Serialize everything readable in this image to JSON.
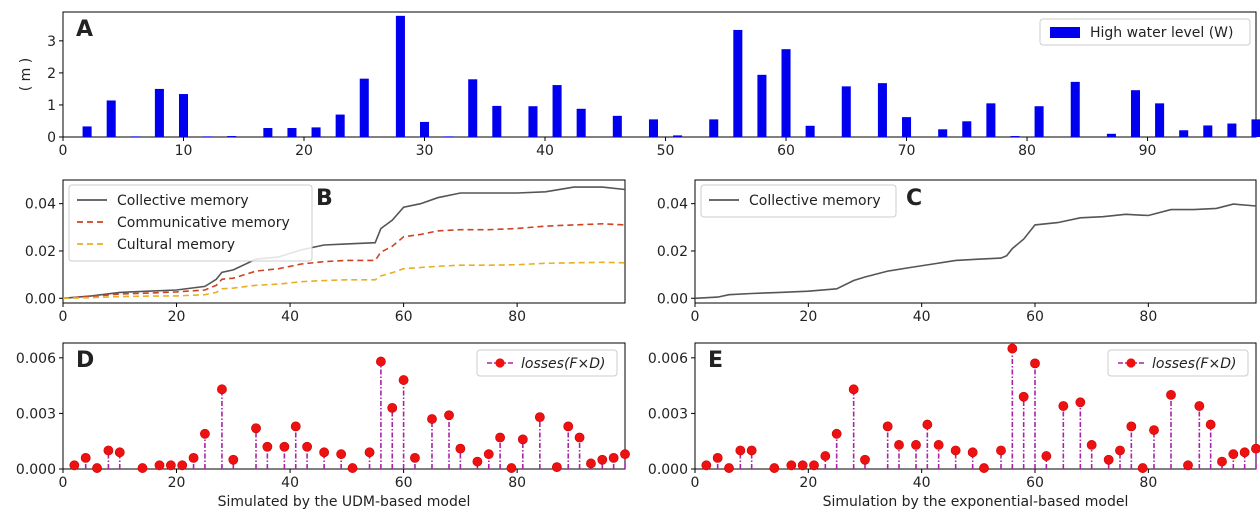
{
  "chart_data": [
    {
      "panel": "A",
      "type": "bar",
      "ylabel": "( m )",
      "xlim": [
        0,
        99
      ],
      "ylim": [
        0,
        3.9
      ],
      "xticks": [
        0,
        10,
        20,
        30,
        40,
        50,
        60,
        70,
        80,
        90
      ],
      "yticks": [
        0,
        1,
        2,
        3
      ],
      "legend": "top-right",
      "color": "#0000ee",
      "series": [
        {
          "name": "High water level (W)",
          "x": [
            2,
            4,
            6,
            8,
            10,
            12,
            14,
            17,
            19,
            21,
            23,
            25,
            28,
            30,
            32,
            34,
            36,
            39,
            41,
            43,
            46,
            49,
            51,
            54,
            56,
            58,
            60,
            62,
            65,
            68,
            70,
            73,
            75,
            77,
            79,
            81,
            84,
            87,
            89,
            91,
            93,
            95,
            97,
            99
          ],
          "values": [
            0.33,
            1.14,
            0.02,
            1.5,
            1.34,
            0.02,
            0.03,
            0.28,
            0.28,
            0.3,
            0.7,
            1.82,
            3.78,
            0.47,
            0.02,
            1.8,
            0.97,
            0.96,
            1.62,
            0.88,
            0.66,
            0.55,
            0.05,
            0.55,
            3.34,
            1.94,
            2.74,
            0.35,
            1.58,
            1.68,
            0.62,
            0.24,
            0.49,
            1.05,
            0.03,
            0.96,
            1.72,
            0.1,
            1.46,
            1.05,
            0.21,
            0.36,
            0.42,
            0.55
          ]
        }
      ]
    },
    {
      "panel": "B",
      "type": "line",
      "xlim": [
        0,
        99
      ],
      "ylim": [
        -0.002,
        0.05
      ],
      "xticks": [
        0,
        20,
        40,
        60,
        80
      ],
      "yticks": [
        0.0,
        0.02,
        0.04
      ],
      "ytick_labels": [
        "0.00",
        "0.02",
        "0.04"
      ],
      "legend": "top-left",
      "x": [
        0,
        5,
        10,
        15,
        20,
        25,
        27,
        28,
        30,
        34,
        38,
        42,
        46,
        50,
        55,
        56,
        58,
        60,
        63,
        66,
        70,
        75,
        80,
        85,
        90,
        95,
        99
      ],
      "series": [
        {
          "name": "Collective memory",
          "color": "#555555",
          "dash": "solid",
          "values": [
            0.0,
            0.001,
            0.0025,
            0.003,
            0.0035,
            0.005,
            0.008,
            0.011,
            0.012,
            0.0165,
            0.0175,
            0.0205,
            0.0225,
            0.023,
            0.0235,
            0.0295,
            0.033,
            0.0385,
            0.04,
            0.0425,
            0.0445,
            0.0445,
            0.0445,
            0.045,
            0.047,
            0.047,
            0.046
          ]
        },
        {
          "name": "Communicative memory",
          "color": "#cc4422",
          "dash": "dashed",
          "values": [
            0.0,
            0.0008,
            0.0018,
            0.0022,
            0.0027,
            0.0035,
            0.0055,
            0.008,
            0.0085,
            0.0115,
            0.0125,
            0.0145,
            0.0155,
            0.016,
            0.016,
            0.0195,
            0.022,
            0.026,
            0.027,
            0.0285,
            0.029,
            0.029,
            0.0295,
            0.0305,
            0.031,
            0.0315,
            0.031
          ]
        },
        {
          "name": "Cultural memory",
          "color": "#e8b020",
          "dash": "dashed",
          "values": [
            0.0,
            0.0003,
            0.0007,
            0.0009,
            0.001,
            0.0015,
            0.0025,
            0.004,
            0.0043,
            0.0055,
            0.006,
            0.007,
            0.0075,
            0.0078,
            0.0078,
            0.0095,
            0.0108,
            0.0125,
            0.013,
            0.0135,
            0.014,
            0.014,
            0.0142,
            0.0148,
            0.015,
            0.0152,
            0.015
          ]
        }
      ]
    },
    {
      "panel": "C",
      "type": "line",
      "xlim": [
        0,
        99
      ],
      "ylim": [
        -0.002,
        0.05
      ],
      "xticks": [
        0,
        20,
        40,
        60,
        80
      ],
      "yticks": [
        0.0,
        0.02,
        0.04
      ],
      "ytick_labels": [
        "0.00",
        "0.02",
        "0.04"
      ],
      "legend": "top-left",
      "x": [
        0,
        4,
        6,
        10,
        15,
        20,
        25,
        28,
        30,
        34,
        38,
        42,
        46,
        50,
        54,
        55,
        56,
        58,
        60,
        64,
        68,
        72,
        76,
        80,
        84,
        88,
        92,
        95,
        99
      ],
      "series": [
        {
          "name": "Collective memory",
          "color": "#555555",
          "dash": "solid",
          "values": [
            0.0,
            0.0005,
            0.0015,
            0.002,
            0.0025,
            0.003,
            0.004,
            0.0075,
            0.009,
            0.0115,
            0.013,
            0.0145,
            0.016,
            0.0165,
            0.017,
            0.018,
            0.021,
            0.025,
            0.031,
            0.032,
            0.034,
            0.0345,
            0.0355,
            0.035,
            0.0375,
            0.0375,
            0.038,
            0.0398,
            0.039
          ]
        }
      ]
    },
    {
      "panel": "D",
      "type": "scatter",
      "xlabel": "Simulated by the UDM-based model",
      "xlim": [
        0,
        99
      ],
      "ylim": [
        0,
        0.0068
      ],
      "xticks": [
        0,
        20,
        40,
        60,
        80
      ],
      "yticks": [
        0.0,
        0.003,
        0.006
      ],
      "ytick_labels": [
        "0.000",
        "0.003",
        "0.006"
      ],
      "legend": "top-right",
      "legend_label": "losses(F×D)",
      "x": [
        2,
        4,
        6,
        8,
        10,
        14,
        17,
        19,
        21,
        23,
        25,
        28,
        30,
        34,
        36,
        39,
        41,
        43,
        46,
        49,
        51,
        54,
        56,
        58,
        60,
        62,
        65,
        68,
        70,
        73,
        75,
        77,
        79,
        81,
        84,
        87,
        89,
        91,
        93,
        95,
        97,
        99
      ],
      "values": [
        0.0002,
        0.0006,
        5e-05,
        0.001,
        0.0009,
        5e-05,
        0.0002,
        0.0002,
        0.0002,
        0.0006,
        0.0019,
        0.0043,
        0.0005,
        0.0022,
        0.0012,
        0.0012,
        0.0023,
        0.0012,
        0.0009,
        0.0008,
        5e-05,
        0.0009,
        0.0058,
        0.0033,
        0.0048,
        0.0006,
        0.0027,
        0.0029,
        0.0011,
        0.0004,
        0.0008,
        0.0017,
        5e-05,
        0.0016,
        0.0028,
        0.0001,
        0.0023,
        0.0017,
        0.0003,
        0.0005,
        0.0006,
        0.0008
      ]
    },
    {
      "panel": "E",
      "type": "scatter",
      "xlabel": "Simulation by the exponential-based model",
      "xlim": [
        0,
        99
      ],
      "ylim": [
        0,
        0.0068
      ],
      "xticks": [
        0,
        20,
        40,
        60,
        80
      ],
      "yticks": [
        0.0,
        0.003,
        0.006
      ],
      "ytick_labels": [
        "0.000",
        "0.003",
        "0.006"
      ],
      "legend": "top-right",
      "legend_label": "losses(F×D)",
      "x": [
        2,
        4,
        6,
        8,
        10,
        14,
        17,
        19,
        21,
        23,
        25,
        28,
        30,
        34,
        36,
        39,
        41,
        43,
        46,
        49,
        51,
        54,
        56,
        58,
        60,
        62,
        65,
        68,
        70,
        73,
        75,
        77,
        79,
        81,
        84,
        87,
        89,
        91,
        93,
        95,
        97,
        99
      ],
      "values": [
        0.0002,
        0.0006,
        5e-05,
        0.001,
        0.001,
        5e-05,
        0.0002,
        0.0002,
        0.0002,
        0.0007,
        0.0019,
        0.0043,
        0.0005,
        0.0023,
        0.0013,
        0.0013,
        0.0024,
        0.0013,
        0.001,
        0.0009,
        5e-05,
        0.001,
        0.0065,
        0.0039,
        0.0057,
        0.0007,
        0.0034,
        0.0036,
        0.0013,
        0.0005,
        0.001,
        0.0023,
        5e-05,
        0.0021,
        0.004,
        0.0002,
        0.0034,
        0.0024,
        0.0004,
        0.0008,
        0.0009,
        0.0011
      ]
    }
  ]
}
